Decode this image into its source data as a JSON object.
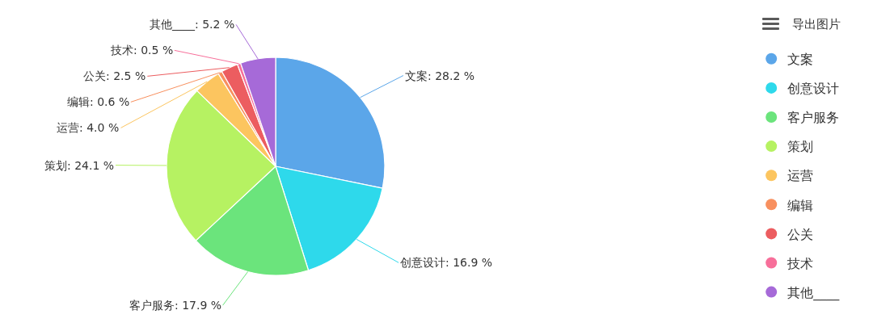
{
  "chart_data": {
    "type": "pie",
    "categories": [
      "文案",
      "创意设计",
      "客户服务",
      "策划",
      "运营",
      "编辑",
      "公关",
      "技术",
      "其他____"
    ],
    "values": [
      28.2,
      16.9,
      17.9,
      24.1,
      4.0,
      0.6,
      2.5,
      0.5,
      5.2
    ],
    "colors": [
      "#5ba6e9",
      "#2ed9eb",
      "#6be47c",
      "#b6f262",
      "#fcc55f",
      "#f8905f",
      "#ec5d60",
      "#f76f9a",
      "#a66ad8"
    ],
    "value_labels": [
      "文案: 28.2 %",
      "创意设计: 16.9 %",
      "客户服务: 17.9 %",
      "策划: 24.1 %",
      "运营: 4.0 %",
      "编辑: 0.6 %",
      "公关: 2.5 %",
      "技术: 0.5 %",
      "其他____: 5.2 %"
    ],
    "legend": "right",
    "annotations": [
      "导出图片"
    ]
  }
}
